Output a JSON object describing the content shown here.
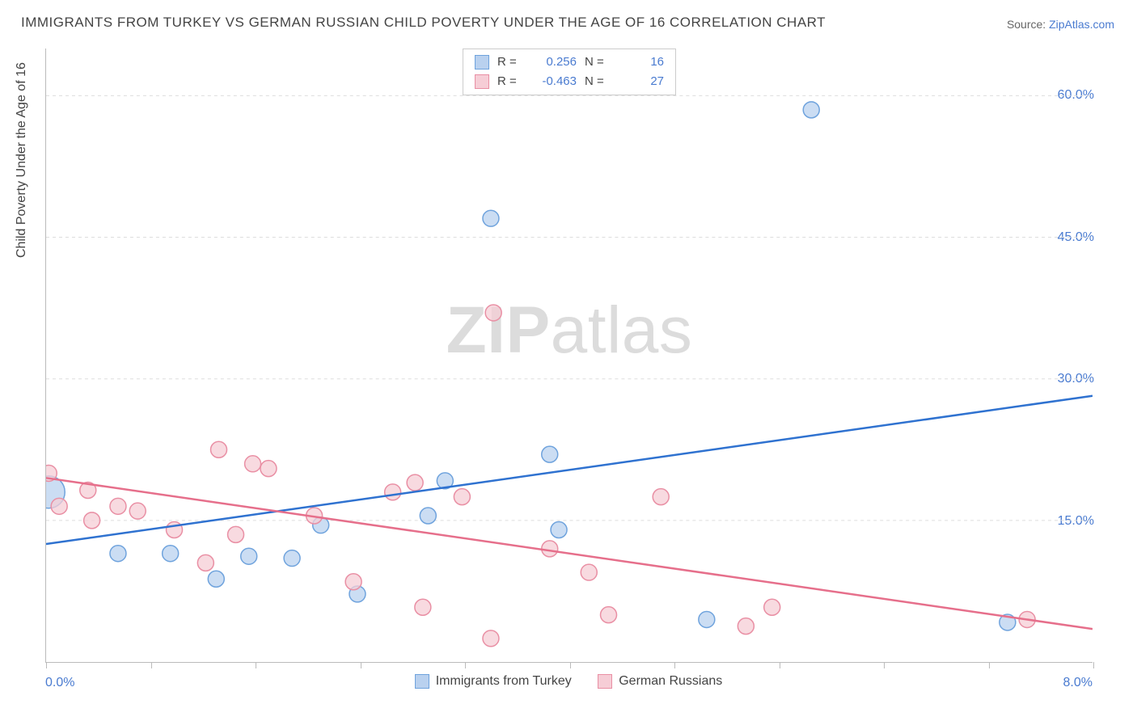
{
  "title": "IMMIGRANTS FROM TURKEY VS GERMAN RUSSIAN CHILD POVERTY UNDER THE AGE OF 16 CORRELATION CHART",
  "source_label": "Source: ",
  "source_link_text": "ZipAtlas.com",
  "y_axis_title": "Child Poverty Under the Age of 16",
  "watermark_bold": "ZIP",
  "watermark_light": "atlas",
  "chart": {
    "type": "scatter-correlation",
    "background_color": "#ffffff",
    "grid_color": "#dddddd",
    "axis_color": "#bbbbbb",
    "xlim": [
      0.0,
      8.0
    ],
    "ylim": [
      0.0,
      65.0
    ],
    "y_ticks": [
      15.0,
      30.0,
      45.0,
      60.0
    ],
    "y_tick_labels": [
      "15.0%",
      "30.0%",
      "45.0%",
      "60.0%"
    ],
    "x_ticks": [
      0.0,
      0.8,
      1.6,
      2.4,
      3.2,
      4.0,
      4.8,
      5.6,
      6.4,
      7.2,
      8.0
    ],
    "x_label_min": "0.0%",
    "x_label_max": "8.0%",
    "series": [
      {
        "name": "Immigrants from Turkey",
        "color_fill": "#b9d1ef",
        "color_stroke": "#6fa3dd",
        "line_color": "#2f72d0",
        "marker_radius": 10,
        "R": "0.256",
        "N": "16",
        "trend": {
          "x1": 0.0,
          "y1": 12.5,
          "x2": 8.0,
          "y2": 28.2
        },
        "points": [
          {
            "x": 0.02,
            "y": 18.0,
            "r": 20
          },
          {
            "x": 0.55,
            "y": 11.5
          },
          {
            "x": 0.95,
            "y": 11.5
          },
          {
            "x": 1.3,
            "y": 8.8
          },
          {
            "x": 1.55,
            "y": 11.2
          },
          {
            "x": 1.88,
            "y": 11.0
          },
          {
            "x": 2.1,
            "y": 14.5
          },
          {
            "x": 2.38,
            "y": 7.2
          },
          {
            "x": 2.92,
            "y": 15.5
          },
          {
            "x": 3.05,
            "y": 19.2
          },
          {
            "x": 3.4,
            "y": 47.0
          },
          {
            "x": 3.85,
            "y": 22.0
          },
          {
            "x": 3.92,
            "y": 14.0
          },
          {
            "x": 5.05,
            "y": 4.5
          },
          {
            "x": 5.85,
            "y": 58.5
          },
          {
            "x": 7.35,
            "y": 4.2
          }
        ]
      },
      {
        "name": "German Russians",
        "color_fill": "#f6cdd6",
        "color_stroke": "#e98fa4",
        "line_color": "#e66f8b",
        "marker_radius": 10,
        "R": "-0.463",
        "N": "27",
        "trend": {
          "x1": 0.0,
          "y1": 19.5,
          "x2": 8.0,
          "y2": 3.5
        },
        "points": [
          {
            "x": 0.02,
            "y": 20.0
          },
          {
            "x": 0.1,
            "y": 16.5
          },
          {
            "x": 0.32,
            "y": 18.2
          },
          {
            "x": 0.35,
            "y": 15.0
          },
          {
            "x": 0.55,
            "y": 16.5
          },
          {
            "x": 0.7,
            "y": 16.0
          },
          {
            "x": 0.98,
            "y": 14.0
          },
          {
            "x": 1.22,
            "y": 10.5
          },
          {
            "x": 1.32,
            "y": 22.5
          },
          {
            "x": 1.45,
            "y": 13.5
          },
          {
            "x": 1.58,
            "y": 21.0
          },
          {
            "x": 1.7,
            "y": 20.5
          },
          {
            "x": 2.05,
            "y": 15.5
          },
          {
            "x": 2.35,
            "y": 8.5
          },
          {
            "x": 2.65,
            "y": 18.0
          },
          {
            "x": 2.82,
            "y": 19.0
          },
          {
            "x": 2.88,
            "y": 5.8
          },
          {
            "x": 3.18,
            "y": 17.5
          },
          {
            "x": 3.4,
            "y": 2.5
          },
          {
            "x": 3.42,
            "y": 37.0
          },
          {
            "x": 3.85,
            "y": 12.0
          },
          {
            "x": 4.15,
            "y": 9.5
          },
          {
            "x": 4.3,
            "y": 5.0
          },
          {
            "x": 4.7,
            "y": 17.5
          },
          {
            "x": 5.35,
            "y": 3.8
          },
          {
            "x": 5.55,
            "y": 5.8
          },
          {
            "x": 7.5,
            "y": 4.5
          }
        ]
      }
    ]
  },
  "legend_top": {
    "r_label": "R =",
    "n_label": "N ="
  }
}
